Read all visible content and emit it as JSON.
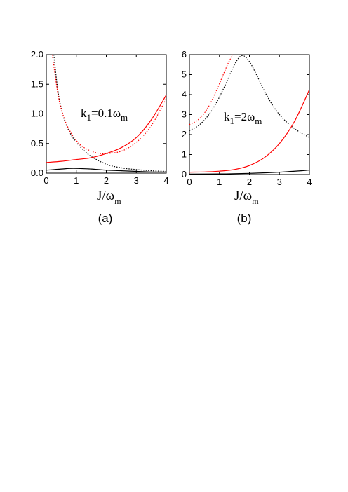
{
  "chart_data": [
    {
      "type": "line",
      "panel_label": "(a)",
      "annotation": {
        "k": "k",
        "k_sub": "1",
        "rest": "=0.1ω",
        "rest_sub": "m"
      },
      "xlabel": {
        "main": "J/ω",
        "sub": "m"
      },
      "ylabel": "",
      "xlim": [
        0,
        4
      ],
      "ylim": [
        0,
        2.0
      ],
      "xticks": [
        "0",
        "1",
        "2",
        "3",
        "4"
      ],
      "yticks": [
        "0.0",
        "0.5",
        "1.0",
        "1.5",
        "2.0"
      ],
      "series": [
        {
          "color": "#000000",
          "style": "dotted",
          "x": [
            0.25,
            0.4,
            0.6,
            0.8,
            1.0,
            1.2,
            1.5,
            2.0,
            2.5,
            3.0,
            3.5,
            4.0
          ],
          "y": [
            2.0,
            1.35,
            0.9,
            0.67,
            0.52,
            0.41,
            0.28,
            0.15,
            0.09,
            0.06,
            0.04,
            0.03
          ]
        },
        {
          "color": "#ff0000",
          "style": "dotted",
          "x": [
            0.2,
            0.4,
            0.6,
            0.8,
            1.0,
            1.2,
            1.5,
            1.8,
            2.0,
            2.5,
            3.0,
            3.5,
            4.0
          ],
          "y": [
            2.0,
            1.3,
            0.92,
            0.7,
            0.55,
            0.45,
            0.37,
            0.33,
            0.33,
            0.37,
            0.52,
            0.8,
            1.26
          ]
        },
        {
          "color": "#ff0000",
          "style": "solid",
          "x": [
            0,
            0.5,
            1.0,
            1.5,
            2.0,
            2.5,
            3.0,
            3.5,
            4.0
          ],
          "y": [
            0.18,
            0.2,
            0.23,
            0.26,
            0.33,
            0.43,
            0.6,
            0.9,
            1.32
          ]
        },
        {
          "color": "#000000",
          "style": "solid",
          "x": [
            0,
            0.5,
            0.9,
            1.5,
            2.0,
            2.5,
            3.0,
            3.5,
            4.0
          ],
          "y": [
            0.05,
            0.07,
            0.08,
            0.07,
            0.05,
            0.04,
            0.03,
            0.02,
            0.02
          ]
        }
      ]
    },
    {
      "type": "line",
      "panel_label": "(b)",
      "annotation": {
        "k": "k",
        "k_sub": "1",
        "rest": "=2ω",
        "rest_sub": "m"
      },
      "xlabel": {
        "main": "J/ω",
        "sub": "m"
      },
      "ylabel": "",
      "xlim": [
        0,
        4
      ],
      "ylim": [
        0,
        6
      ],
      "xticks": [
        "0",
        "1",
        "2",
        "3",
        "4"
      ],
      "yticks": [
        "0",
        "1",
        "2",
        "3",
        "4",
        "5",
        "6"
      ],
      "series": [
        {
          "color": "#000000",
          "style": "dotted",
          "x": [
            0,
            0.3,
            0.6,
            0.9,
            1.2,
            1.5,
            1.75,
            2.0,
            2.3,
            2.6,
            3.0,
            3.5,
            4.0
          ],
          "y": [
            2.2,
            2.45,
            2.9,
            3.6,
            4.5,
            5.5,
            5.95,
            5.65,
            4.8,
            3.9,
            3.0,
            2.3,
            1.85
          ]
        },
        {
          "color": "#ff0000",
          "style": "dotted",
          "x": [
            0,
            0.3,
            0.6,
            0.9,
            1.1,
            1.3,
            1.45
          ],
          "y": [
            2.5,
            2.75,
            3.3,
            4.2,
            4.9,
            5.6,
            6.0
          ]
        },
        {
          "color": "#ff0000",
          "style": "solid",
          "x": [
            0,
            0.5,
            1.0,
            1.5,
            2.0,
            2.5,
            3.0,
            3.5,
            4.0
          ],
          "y": [
            0.12,
            0.13,
            0.17,
            0.25,
            0.45,
            0.85,
            1.55,
            2.65,
            4.25
          ]
        },
        {
          "color": "#000000",
          "style": "solid",
          "x": [
            0,
            1.0,
            2.0,
            3.0,
            4.0
          ],
          "y": [
            0.02,
            0.03,
            0.06,
            0.12,
            0.22
          ]
        }
      ]
    }
  ]
}
